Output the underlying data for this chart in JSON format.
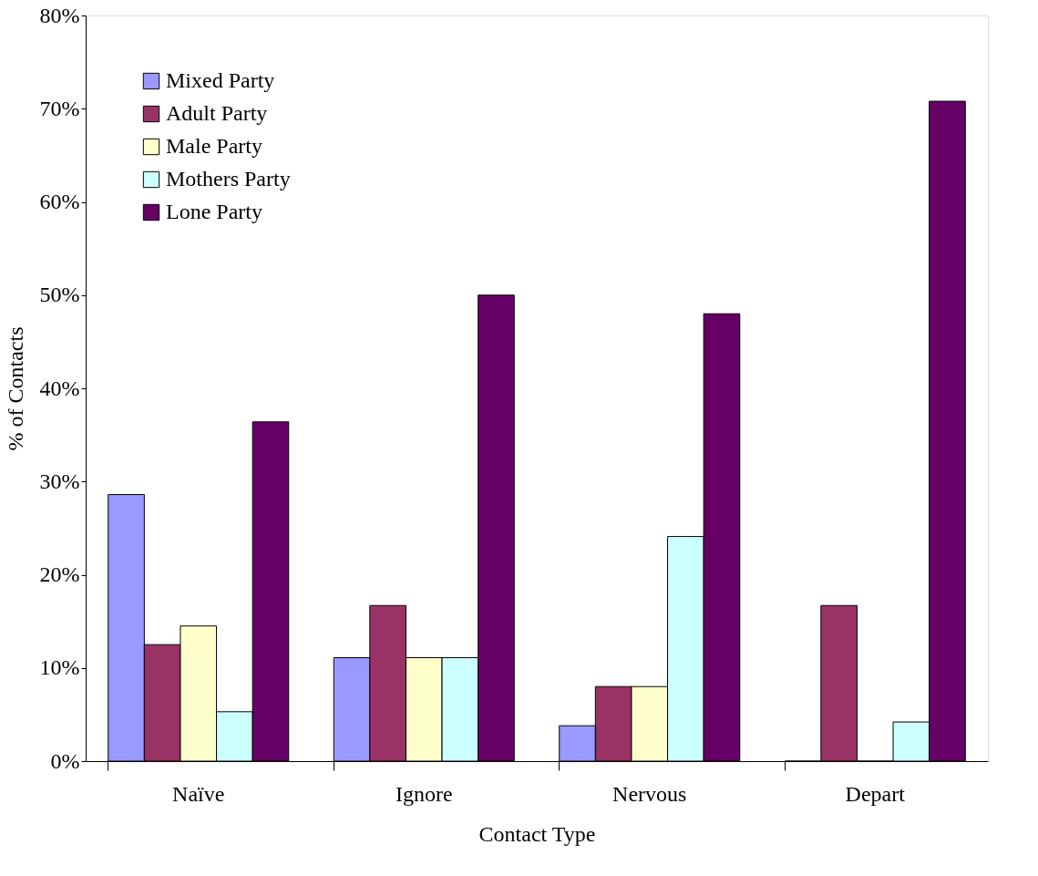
{
  "chart_data": {
    "type": "bar",
    "xlabel": "Contact Type",
    "ylabel": "% of Contacts",
    "categories": [
      "Naïve",
      "Ignore",
      "Nervous",
      "Depart"
    ],
    "series": [
      {
        "name": "Mixed Party",
        "color": "#9999ff",
        "values": [
          28.6,
          11.1,
          3.8,
          0
        ]
      },
      {
        "name": "Adult Party",
        "color": "#993366",
        "values": [
          12.5,
          16.7,
          8.0,
          16.7
        ]
      },
      {
        "name": "Male Party",
        "color": "#ffffcc",
        "values": [
          14.5,
          11.1,
          8.0,
          0
        ]
      },
      {
        "name": "Mothers Party",
        "color": "#ccffff",
        "values": [
          5.3,
          11.1,
          24.1,
          4.2
        ]
      },
      {
        "name": "Lone Party",
        "color": "#660066",
        "values": [
          36.4,
          50.0,
          48.0,
          70.8
        ]
      }
    ],
    "ylim": [
      0,
      80
    ],
    "yticks": [
      {
        "value": 0,
        "label": "0%"
      },
      {
        "value": 10,
        "label": "10%"
      },
      {
        "value": 20,
        "label": "20%"
      },
      {
        "value": 30,
        "label": "30%"
      },
      {
        "value": 40,
        "label": "40%"
      },
      {
        "value": 50,
        "label": "50%"
      },
      {
        "value": 60,
        "label": "60%"
      },
      {
        "value": 70,
        "label": "70%"
      },
      {
        "value": 80,
        "label": "80%"
      }
    ],
    "grid": false,
    "legend": "top left"
  }
}
